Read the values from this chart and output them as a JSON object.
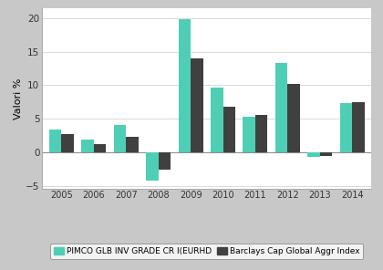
{
  "years": [
    2005,
    2006,
    2007,
    2008,
    2009,
    2010,
    2011,
    2012,
    2013,
    2014
  ],
  "pimco": [
    3.4,
    1.9,
    4.0,
    -4.2,
    19.8,
    9.7,
    5.3,
    13.3,
    -0.7,
    7.3
  ],
  "barclays": [
    2.7,
    1.2,
    2.3,
    -2.6,
    14.0,
    6.8,
    5.6,
    10.2,
    -0.6,
    7.4
  ],
  "pimco_color": "#4ECFB5",
  "barclays_color": "#404040",
  "ylabel": "Valori %",
  "ylim": [
    -5.5,
    21.5
  ],
  "yticks": [
    -5,
    0,
    5,
    10,
    15,
    20
  ],
  "outer_bg_color": "#c8c8c8",
  "plot_bg_color": "#ffffff",
  "legend_label1": "PIMCO GLB INV GRADE CR I(EURHD",
  "legend_label2": "Barclays Cap Global Aggr Index",
  "bar_width": 0.38
}
